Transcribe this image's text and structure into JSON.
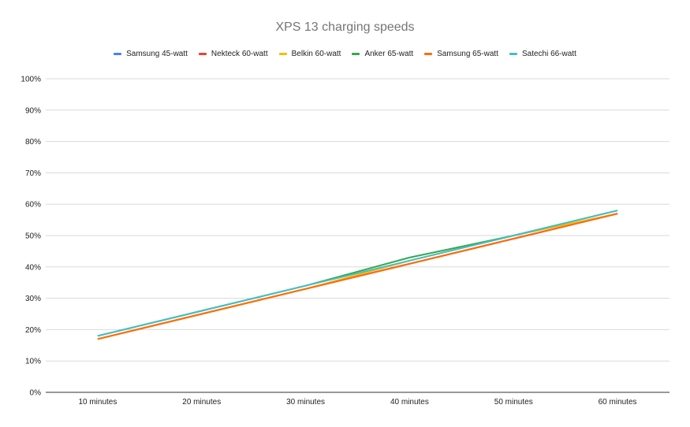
{
  "chart_data": {
    "type": "line",
    "title": "XPS 13 charging speeds",
    "xlabel": "",
    "ylabel": "",
    "categories": [
      "10 minutes",
      "20 minutes",
      "30 minutes",
      "40 minutes",
      "50 minutes",
      "60 minutes"
    ],
    "y_ticks": [
      "0%",
      "10%",
      "20%",
      "30%",
      "40%",
      "50%",
      "60%",
      "70%",
      "80%",
      "90%",
      "100%"
    ],
    "ylim": [
      0,
      100
    ],
    "y_unit": "%",
    "grid": true,
    "legend_position": "top",
    "series": [
      {
        "name": "Samsung 45-watt",
        "color": "#4285f4",
        "values": [
          17,
          25,
          33,
          41,
          49,
          57
        ]
      },
      {
        "name": "Nekteck 60-watt",
        "color": "#ea4335",
        "values": [
          17,
          25,
          33,
          41,
          49,
          57
        ]
      },
      {
        "name": "Belkin 60-watt",
        "color": "#fbbc04",
        "values": [
          17,
          25,
          33,
          42,
          50,
          57
        ]
      },
      {
        "name": "Anker 65-watt",
        "color": "#34a853",
        "values": [
          18,
          26,
          34,
          43,
          50,
          58
        ]
      },
      {
        "name": "Samsung 65-watt",
        "color": "#ff6d01",
        "values": [
          17,
          25,
          33,
          41,
          49,
          57
        ]
      },
      {
        "name": "Satechi 66-watt",
        "color": "#46bdc6",
        "values": [
          18,
          26,
          34,
          42,
          50,
          58
        ]
      }
    ]
  }
}
